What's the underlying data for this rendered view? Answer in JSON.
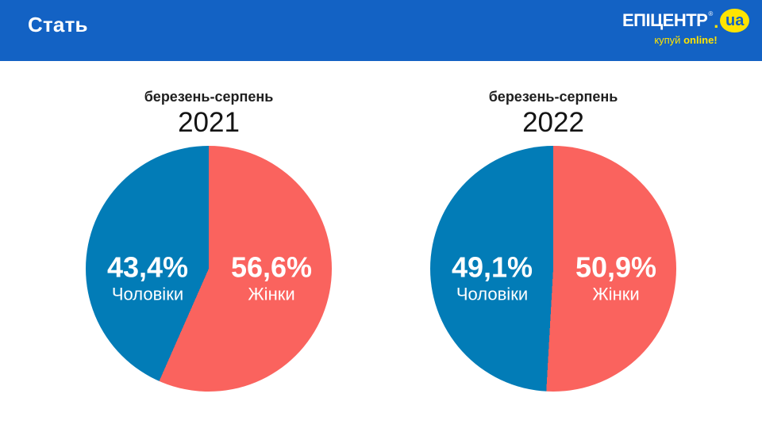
{
  "header": {
    "title": "Стать",
    "background": "#1362c4",
    "logo": {
      "brand": "ЕПІЦЕНТР",
      "reg_mark": "®",
      "dot": ".",
      "tld": "ua",
      "tagline_regular": "купуй",
      "tagline_bold": "online!",
      "yellow": "#ffe400",
      "blue": "#1362c4"
    }
  },
  "chart_data": [
    {
      "type": "pie",
      "subtitle": "березень-серпень",
      "title": "2021",
      "unit": "%",
      "direction": "clockwise",
      "start_angle_deg": 0,
      "first_slice_at_top": "Жінки",
      "legend_position": "inside",
      "slices": [
        {
          "label": "Чоловіки",
          "value": 43.4,
          "display": "43,4%",
          "color": "#027cb7",
          "side": "left"
        },
        {
          "label": "Жінки",
          "value": 56.6,
          "display": "56,6%",
          "color": "#fa635e",
          "side": "right"
        }
      ]
    },
    {
      "type": "pie",
      "subtitle": "березень-серпень",
      "title": "2022",
      "unit": "%",
      "direction": "clockwise",
      "start_angle_deg": 0,
      "first_slice_at_top": "Жінки",
      "legend_position": "inside",
      "slices": [
        {
          "label": "Чоловіки",
          "value": 49.1,
          "display": "49,1%",
          "color": "#027cb7",
          "side": "left"
        },
        {
          "label": "Жінки",
          "value": 50.9,
          "display": "50,9%",
          "color": "#fa635e",
          "side": "right"
        }
      ]
    }
  ]
}
